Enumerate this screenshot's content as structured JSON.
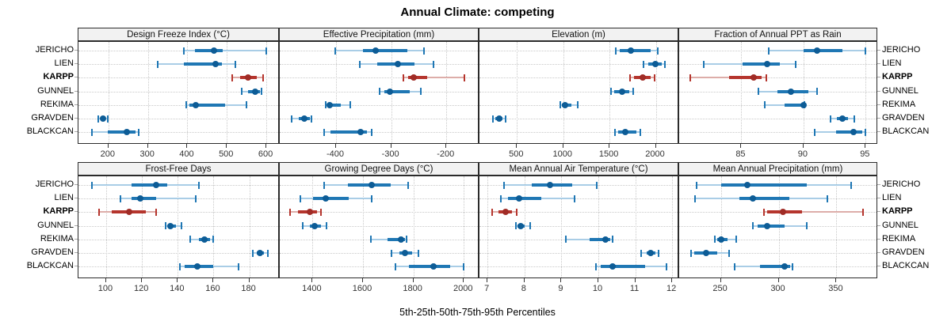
{
  "title": "Annual Climate: competing",
  "xlabel": "5th-25th-50th-75th-95th Percentiles",
  "sites": [
    "JERICHO",
    "LIEN",
    "KARPP",
    "GUNNEL",
    "REKIMA",
    "GRAVDEN",
    "BLACKCAN"
  ],
  "highlighted_site": "KARPP",
  "colors": {
    "blue_main": "#1f77b4",
    "blue_light": "#a9cde6",
    "blue_dot": "#0d5c96",
    "red_main": "#b5352d",
    "red_light": "#ddada9",
    "red_dot": "#a02c26",
    "grid": "#c9c9c9",
    "border": "#2b2b2b",
    "header_bg": "#f2f2f2",
    "tick_text": "#333333"
  },
  "chart_data": [
    {
      "type": "dot-interval",
      "title": "Design Freeze Index (°C)",
      "row": 0,
      "col": 0,
      "xlim": [
        124,
        634
      ],
      "ticks": [
        200,
        300,
        400,
        500,
        600
      ],
      "percentiles": [
        "p5",
        "p25",
        "p50",
        "p75",
        "p95"
      ],
      "series": {
        "JERICHO": [
          391,
          420,
          467,
          490,
          600
        ],
        "LIEN": [
          324,
          391,
          472,
          488,
          522
        ],
        "KARPP": [
          514,
          533,
          554,
          575,
          592
        ],
        "GUNNEL": [
          538,
          553,
          572,
          583,
          587
        ],
        "REKIMA": [
          398,
          405,
          422,
          495,
          549
        ],
        "GRAVDEN": [
          175,
          182,
          187,
          192,
          198
        ],
        "BLACKCAN": [
          158,
          199,
          247,
          269,
          276
        ]
      }
    },
    {
      "type": "dot-interval",
      "title": "Effective Precipitation (mm)",
      "row": 0,
      "col": 1,
      "xlim": [
        -502,
        -140
      ],
      "ticks": [
        -400,
        -300,
        -200
      ],
      "percentiles": [
        "p5",
        "p25",
        "p50",
        "p75",
        "p95"
      ],
      "series": {
        "JERICHO": [
          -402,
          -351,
          -328,
          -271,
          -241
        ],
        "LIEN": [
          -357,
          -326,
          -288,
          -258,
          -224
        ],
        "KARPP": [
          -278,
          -270,
          -259,
          -235,
          -168
        ],
        "GUNNEL": [
          -321,
          -313,
          -302,
          -266,
          -246
        ],
        "REKIMA": [
          -419,
          -415,
          -412,
          -392,
          -374
        ],
        "GRAVDEN": [
          -480,
          -468,
          -458,
          -448,
          -444
        ],
        "BLACKCAN": [
          -421,
          -410,
          -355,
          -344,
          -336
        ]
      }
    },
    {
      "type": "dot-interval",
      "title": "Elevation (m)",
      "row": 0,
      "col": 2,
      "xlim": [
        95,
        2252
      ],
      "ticks": [
        500,
        1000,
        1500,
        2000
      ],
      "percentiles": [
        "p5",
        "p25",
        "p50",
        "p75",
        "p95"
      ],
      "series": {
        "JERICHO": [
          1568,
          1612,
          1732,
          1940,
          2025
        ],
        "LIEN": [
          1870,
          1922,
          1995,
          2063,
          2099
        ],
        "KARPP": [
          1718,
          1766,
          1862,
          1946,
          1986
        ],
        "GUNNEL": [
          1517,
          1554,
          1638,
          1709,
          1757
        ],
        "REKIMA": [
          969,
          982,
          1023,
          1088,
          1158
        ],
        "GRAVDEN": [
          240,
          268,
          308,
          344,
          381
        ],
        "BLACKCAN": [
          1559,
          1596,
          1672,
          1794,
          1836
        ]
      }
    },
    {
      "type": "dot-interval",
      "title": "Fraction of Annual PPT as Rain",
      "row": 0,
      "col": 3,
      "xlim": [
        80,
        96
      ],
      "ticks": [
        85,
        90,
        95
      ],
      "percentiles": [
        "p5",
        "p25",
        "p50",
        "p75",
        "p95"
      ],
      "series": {
        "JERICHO": [
          87.2,
          90.0,
          91.1,
          93.1,
          95.0
        ],
        "LIEN": [
          82.0,
          85.1,
          87.1,
          88.1,
          89.4
        ],
        "KARPP": [
          80.9,
          84.0,
          86.0,
          86.6,
          87.0
        ],
        "GUNNEL": [
          86.4,
          87.9,
          89.0,
          90.4,
          91.1
        ],
        "REKIMA": [
          86.9,
          88.5,
          90.0,
          90.05,
          90.1
        ],
        "GRAVDEN": [
          92.2,
          92.7,
          93.1,
          93.6,
          94.1
        ],
        "BLACKCAN": [
          90.9,
          92.6,
          94.0,
          94.7,
          95.0
        ]
      }
    },
    {
      "type": "dot-interval",
      "title": "Frost-Free Days",
      "row": 1,
      "col": 0,
      "xlim": [
        84.5,
        197
      ],
      "ticks": [
        100,
        120,
        140,
        160,
        180
      ],
      "percentiles": [
        "p5",
        "p25",
        "p50",
        "p75",
        "p95"
      ],
      "series": {
        "JERICHO": [
          92,
          114,
          128,
          134,
          152
        ],
        "LIEN": [
          108,
          114,
          119,
          128,
          150
        ],
        "KARPP": [
          96,
          103,
          113,
          122,
          128
        ],
        "GUNNEL": [
          133,
          134.5,
          136,
          139,
          142
        ],
        "REKIMA": [
          147,
          152,
          155,
          158,
          160
        ],
        "GRAVDEN": [
          182,
          184,
          186,
          188,
          190.5
        ],
        "BLACKCAN": [
          141,
          144,
          151,
          160,
          174
        ]
      }
    },
    {
      "type": "dot-interval",
      "title": "Growing Degree Days (°C)",
      "row": 1,
      "col": 1,
      "xlim": [
        1270,
        2062
      ],
      "ticks": [
        1400,
        1600,
        1800,
        2000
      ],
      "percentiles": [
        "p5",
        "p25",
        "p50",
        "p75",
        "p95"
      ],
      "series": {
        "JERICHO": [
          1447,
          1541,
          1633,
          1711,
          1778
        ],
        "LIEN": [
          1351,
          1403,
          1453,
          1543,
          1633
        ],
        "KARPP": [
          1312,
          1341,
          1390,
          1417,
          1432
        ],
        "GUNNEL": [
          1362,
          1388,
          1409,
          1432,
          1455
        ],
        "REKIMA": [
          1631,
          1698,
          1750,
          1766,
          1773
        ],
        "GRAVDEN": [
          1713,
          1745,
          1768,
          1795,
          1820
        ],
        "BLACKCAN": [
          1728,
          1781,
          1880,
          1947,
          2000
        ]
      }
    },
    {
      "type": "dot-interval",
      "title": "Mean Annual Air Temperature (°C)",
      "row": 1,
      "col": 2,
      "xlim": [
        6.78,
        12.19
      ],
      "ticks": [
        7,
        8,
        9,
        10,
        11,
        12
      ],
      "percentiles": [
        "p5",
        "p25",
        "p50",
        "p75",
        "p95"
      ],
      "series": {
        "JERICHO": [
          7.45,
          8.2,
          8.7,
          9.3,
          9.95
        ],
        "LIEN": [
          7.35,
          7.55,
          7.85,
          8.45,
          9.35
        ],
        "KARPP": [
          7.13,
          7.3,
          7.48,
          7.65,
          7.78
        ],
        "GUNNEL": [
          7.76,
          7.82,
          7.89,
          8.0,
          8.16
        ],
        "REKIMA": [
          9.11,
          9.77,
          10.2,
          10.33,
          10.38
        ],
        "GRAVDEN": [
          11.16,
          11.3,
          11.42,
          11.54,
          11.64
        ],
        "BLACKCAN": [
          9.94,
          10.06,
          10.38,
          11.26,
          11.84
        ]
      }
    },
    {
      "type": "dot-interval",
      "title": "Mean Annual Precipitation (mm)",
      "row": 1,
      "col": 3,
      "xlim": [
        214,
        386
      ],
      "ticks": [
        250,
        300,
        350
      ],
      "percentiles": [
        "p5",
        "p25",
        "p50",
        "p75",
        "p95"
      ],
      "series": {
        "JERICHO": [
          229,
          250,
          273,
          324,
          363
        ],
        "LIEN": [
          228,
          266,
          278,
          309,
          342
        ],
        "KARPP": [
          287,
          290,
          304,
          320,
          373
        ],
        "GUNNEL": [
          278,
          282,
          290,
          305,
          324
        ],
        "REKIMA": [
          245,
          247,
          250,
          256,
          263
        ],
        "GRAVDEN": [
          224,
          227,
          237,
          247,
          257
        ],
        "BLACKCAN": [
          262,
          284,
          305,
          310,
          312
        ]
      }
    }
  ]
}
